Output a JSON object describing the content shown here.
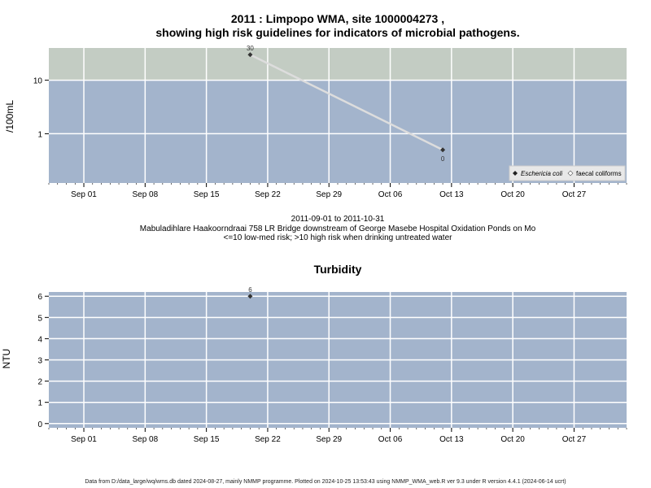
{
  "chart_data": [
    {
      "type": "line",
      "title_line1": "2011 : Limpopo WMA, site 1000004273 ,",
      "title_line2": "showing high risk guidelines for indicators of microbial pathogens.",
      "ylabel": "/100mL",
      "y_scale": "log",
      "ylim": [
        0.12,
        40
      ],
      "y_ticks": [
        1,
        10
      ],
      "y_tick_labels": [
        "1",
        "10"
      ],
      "high_risk_threshold": 10,
      "x_ticks": [
        "2011-09-01",
        "2011-09-08",
        "2011-09-15",
        "2011-09-22",
        "2011-09-29",
        "2011-10-06",
        "2011-10-13",
        "2011-10-20",
        "2011-10-27"
      ],
      "x_tick_labels": [
        "Sep 01",
        "Sep 08",
        "Sep 15",
        "Sep 22",
        "Sep 29",
        "Oct 06",
        "Oct 13",
        "Oct 20",
        "Oct 27"
      ],
      "xlim": [
        "2011-08-28",
        "2011-11-02"
      ],
      "grid": true,
      "series": [
        {
          "name": "Eschericia coli",
          "points": [
            {
              "x": "2011-09-20",
              "y": 30,
              "label": "30"
            },
            {
              "x": "2011-10-12",
              "y": 0.5,
              "label": "0"
            }
          ]
        }
      ],
      "legend": {
        "position": "bottom-right",
        "entries": [
          "Eschericia coli",
          "faecal coliforms"
        ]
      },
      "notes": [
        "2011-09-01 to 2011-10-31",
        "Mabuladihlare Haakoorndraai 758 LR Bridge downstream of George Masebe Hospital Oxidation Ponds on Mo",
        "<=10 low-med risk; >10 high risk when drinking untreated water"
      ]
    },
    {
      "type": "scatter",
      "title": "Turbidity",
      "ylabel": "NTU",
      "ylim": [
        -0.2,
        6.2
      ],
      "y_ticks": [
        0,
        1,
        2,
        3,
        4,
        5,
        6
      ],
      "x_ticks": [
        "2011-09-01",
        "2011-09-08",
        "2011-09-15",
        "2011-09-22",
        "2011-09-29",
        "2011-10-06",
        "2011-10-13",
        "2011-10-20",
        "2011-10-27"
      ],
      "x_tick_labels": [
        "Sep 01",
        "Sep 08",
        "Sep 15",
        "Sep 22",
        "Sep 29",
        "Oct 06",
        "Oct 13",
        "Oct 20",
        "Oct 27"
      ],
      "xlim": [
        "2011-08-28",
        "2011-11-02"
      ],
      "grid": true,
      "series": [
        {
          "points": [
            {
              "x": "2011-09-20",
              "y": 6,
              "label": "6"
            }
          ]
        }
      ]
    }
  ],
  "colors": {
    "plot_bg": "#a3b4cc",
    "high_risk_band": "#c3ccc3",
    "grid": "#ffffff",
    "line": "#dddddd",
    "marker": "#333333"
  },
  "footer": "Data from D:/data_large/wq/wms.db dated 2024-08-27, mainly NMMP programme. Plotted on 2024-10-25 13:53:43 using NMMP_WMA_web.R ver 9.3 under R version 4.4.1 (2024-06-14 ucrt)"
}
